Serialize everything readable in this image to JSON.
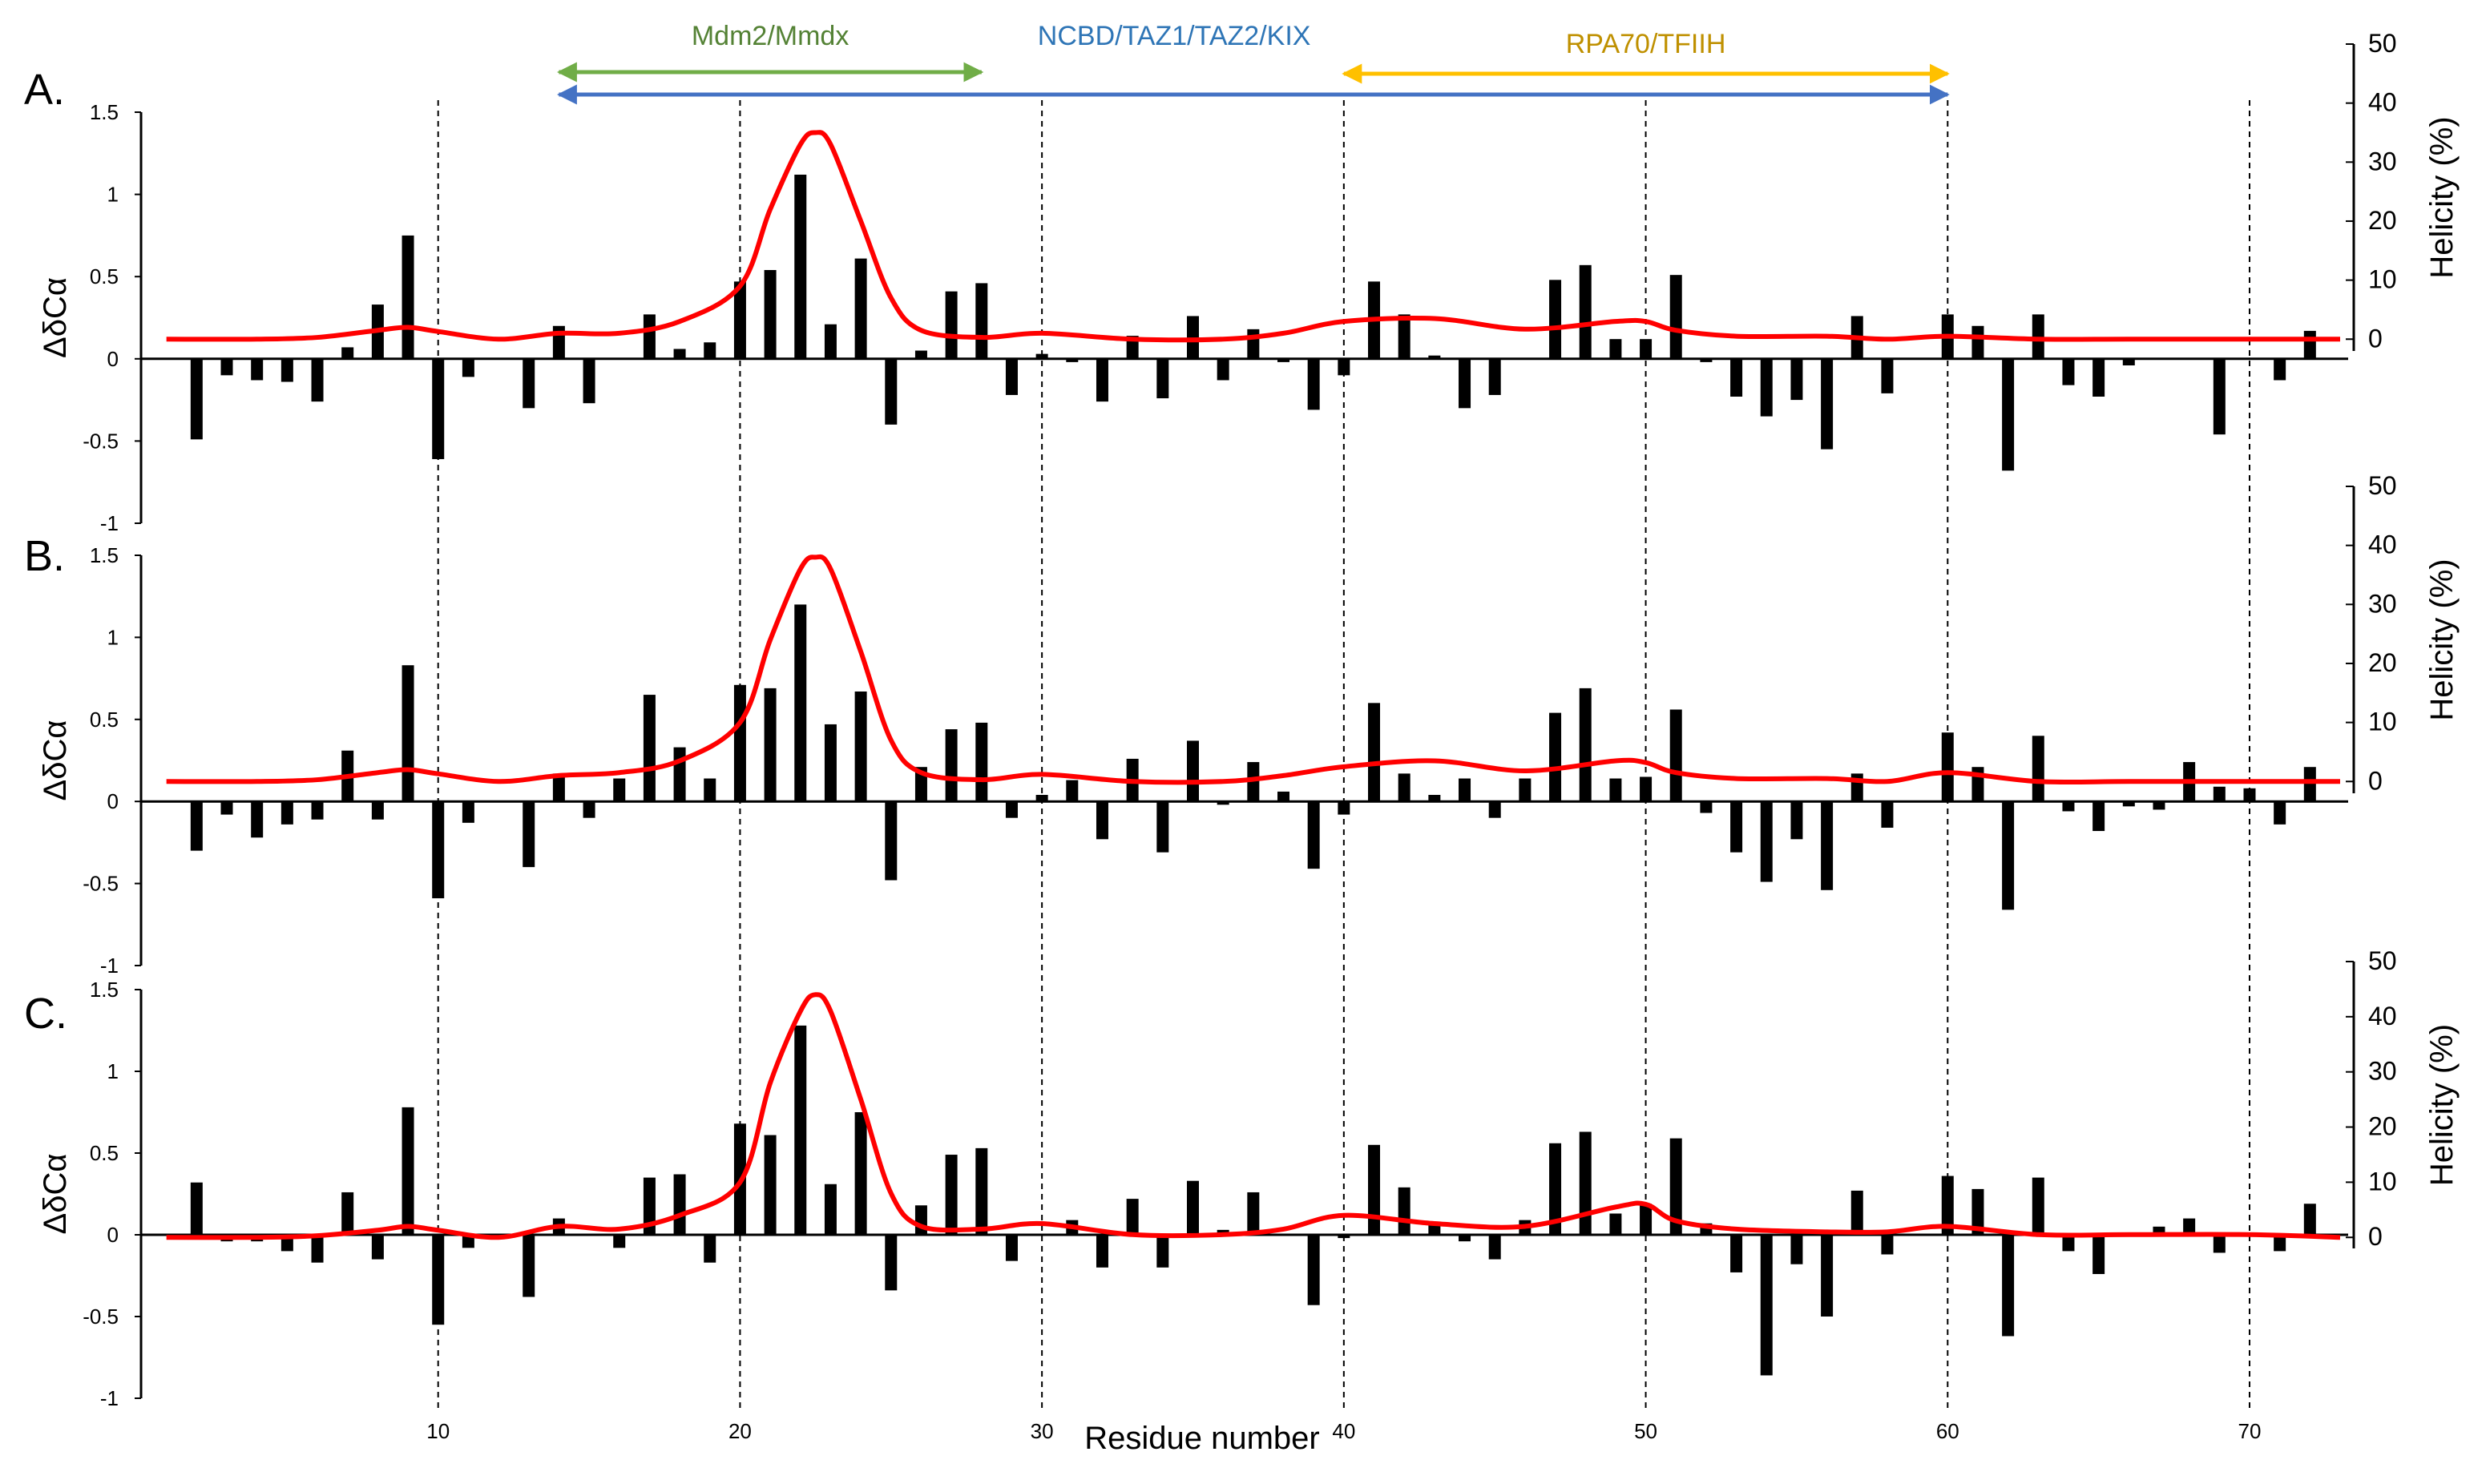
{
  "chart_data": {
    "type": "bar",
    "title": "",
    "xlabel": "Residue number",
    "xlim": [
      0,
      73
    ],
    "x_ticks": [
      10,
      20,
      30,
      40,
      50,
      60,
      70
    ],
    "x_tick_labels": [
      "10",
      "20",
      "30",
      "40",
      "50",
      "60",
      "70"
    ],
    "dashed_guides_at": [
      10,
      20,
      30,
      40,
      50,
      60,
      70
    ],
    "colors": {
      "bar": "#000000",
      "helicity": "#ff0000",
      "mdm2": "#70ad47",
      "ncbd": "#4472c4",
      "rpa": "#ffc000",
      "label_mdm2": "#548235",
      "label_ncbd": "#2e75b6",
      "label_rpa": "#bf9000",
      "guide": "#000000"
    },
    "binding_regions": [
      {
        "label": "Mdm2/Mmdx",
        "start": 14,
        "end": 28,
        "color_key": "mdm2",
        "label_color_key": "label_mdm2"
      },
      {
        "label": "NCBD/TAZ1/TAZ2/KIX",
        "start": 14,
        "end": 60,
        "color_key": "ncbd",
        "label_color_key": "label_ncbd"
      },
      {
        "label": "RPA70/TFIIH",
        "start": 40,
        "end": 60,
        "color_key": "rpa",
        "label_color_key": "label_rpa"
      }
    ],
    "panels": [
      {
        "label": "A.",
        "ylabel": "ΔδCα",
        "ylim": [
          -1,
          1.5
        ],
        "y_ticks": [
          -1,
          -0.5,
          0,
          0.5,
          1,
          1.5
        ],
        "y_tick_labels": [
          "-1",
          "-0.5",
          "0",
          "0.5",
          "1",
          "1.5"
        ],
        "y2label": "Helicity (%)",
        "y2lim": [
          -2,
          50
        ],
        "y2_ticks": [
          0,
          10,
          20,
          30,
          40,
          50
        ],
        "y2_tick_labels": [
          "0",
          "10",
          "20",
          "30",
          "40",
          "50"
        ],
        "residues": [
          2,
          3,
          4,
          5,
          6,
          7,
          8,
          9,
          10,
          11,
          13,
          14,
          15,
          17,
          18,
          19,
          20,
          21,
          22,
          23,
          24,
          25,
          26,
          27,
          28,
          29,
          30,
          31,
          32,
          33,
          34,
          35,
          36,
          37,
          38,
          39,
          40,
          41,
          42,
          43,
          44,
          45,
          47,
          48,
          49,
          50,
          51,
          52,
          53,
          54,
          55,
          56,
          57,
          58,
          60,
          61,
          62,
          63,
          64,
          65,
          66,
          69,
          71,
          72
        ],
        "delta_ca": [
          -0.49,
          -0.1,
          -0.13,
          -0.14,
          -0.26,
          0.07,
          0.33,
          0.75,
          -0.61,
          -0.11,
          -0.3,
          0.2,
          -0.27,
          0.27,
          0.06,
          0.1,
          0.47,
          0.54,
          1.12,
          0.21,
          0.61,
          -0.4,
          0.05,
          0.41,
          0.46,
          -0.22,
          0.03,
          -0.02,
          -0.26,
          0.14,
          -0.24,
          0.26,
          -0.13,
          0.18,
          -0.02,
          -0.31,
          -0.1,
          0.47,
          0.27,
          0.02,
          -0.3,
          -0.22,
          0.48,
          0.57,
          0.12,
          0.12,
          0.51,
          -0.02,
          -0.23,
          -0.35,
          -0.25,
          -0.55,
          0.26,
          -0.21,
          0.27,
          0.2,
          -0.68,
          0.27,
          -0.16,
          -0.23,
          -0.04,
          -0.46,
          -0.13,
          0.17
        ],
        "helicity_x": [
          1,
          4,
          6,
          8,
          9,
          10,
          12,
          14,
          16,
          18,
          20,
          21,
          22,
          22.5,
          23,
          24,
          25,
          26,
          28,
          30,
          33,
          36,
          38,
          40,
          43,
          46,
          49,
          50,
          51,
          53,
          56,
          58,
          60,
          63,
          66,
          70,
          73
        ],
        "helicity_y": [
          0,
          0,
          0.3,
          1.5,
          2,
          1.3,
          0,
          1,
          1,
          3,
          9,
          22,
          33,
          35,
          33,
          20,
          7,
          1.5,
          0.3,
          1,
          0,
          0,
          1,
          3,
          3.5,
          1.7,
          3,
          3,
          1.5,
          0.5,
          0.5,
          0,
          0.5,
          0,
          0,
          0,
          0
        ]
      },
      {
        "label": "B.",
        "ylabel": "ΔδCα",
        "ylim": [
          -1,
          1.5
        ],
        "y_ticks": [
          -1,
          -0.5,
          0,
          0.5,
          1,
          1.5
        ],
        "y_tick_labels": [
          "-1",
          "-0.5",
          "0",
          "0.5",
          "1",
          "1.5"
        ],
        "y2label": "Helicity (%)",
        "y2lim": [
          -2,
          50
        ],
        "y2_ticks": [
          0,
          10,
          20,
          30,
          40,
          50
        ],
        "y2_tick_labels": [
          "0",
          "10",
          "20",
          "30",
          "40",
          "50"
        ],
        "residues": [
          2,
          3,
          4,
          5,
          6,
          7,
          8,
          9,
          10,
          11,
          13,
          14,
          15,
          16,
          17,
          18,
          19,
          20,
          21,
          22,
          23,
          24,
          25,
          26,
          27,
          28,
          29,
          30,
          31,
          32,
          33,
          34,
          35,
          36,
          37,
          38,
          39,
          40,
          41,
          42,
          43,
          44,
          45,
          46,
          47,
          48,
          49,
          50,
          51,
          52,
          53,
          54,
          55,
          56,
          57,
          58,
          60,
          61,
          62,
          63,
          64,
          65,
          66,
          67,
          68,
          69,
          70,
          71,
          72
        ],
        "delta_ca": [
          -0.3,
          -0.08,
          -0.22,
          -0.14,
          -0.11,
          0.31,
          -0.11,
          0.83,
          -0.59,
          -0.13,
          -0.4,
          0.17,
          -0.1,
          0.14,
          0.65,
          0.33,
          0.14,
          0.71,
          0.69,
          1.2,
          0.47,
          0.67,
          -0.48,
          0.21,
          0.44,
          0.48,
          -0.1,
          0.04,
          0.13,
          -0.23,
          0.26,
          -0.31,
          0.37,
          -0.02,
          0.24,
          0.06,
          -0.41,
          -0.08,
          0.6,
          0.17,
          0.04,
          0.14,
          -0.1,
          0.14,
          0.54,
          0.69,
          0.14,
          0.15,
          0.56,
          -0.07,
          -0.31,
          -0.49,
          -0.23,
          -0.54,
          0.17,
          -0.16,
          0.42,
          0.21,
          -0.66,
          0.4,
          -0.06,
          -0.18,
          -0.03,
          -0.05,
          0.24,
          0.09,
          0.08,
          -0.14,
          0.21
        ],
        "helicity_x": [
          1,
          4,
          6,
          8,
          9,
          10,
          12,
          14,
          16,
          18,
          20,
          21,
          22,
          22.5,
          23,
          24,
          25,
          26,
          28,
          30,
          33,
          36,
          38,
          40,
          43,
          46,
          49,
          50,
          51,
          53,
          56,
          58,
          60,
          63,
          66,
          70,
          73
        ],
        "helicity_y": [
          0,
          0,
          0.3,
          1.5,
          2,
          1.3,
          0,
          1,
          1.5,
          3.5,
          10,
          24,
          36,
          38,
          36,
          22,
          7,
          1.5,
          0.3,
          1.2,
          0,
          0,
          1,
          2.5,
          3.5,
          1.8,
          3.5,
          3.2,
          1.5,
          0.5,
          0.5,
          0,
          1.5,
          0,
          0,
          0,
          0
        ]
      },
      {
        "label": "C.",
        "ylabel": "ΔδCα",
        "ylim": [
          -1,
          1.5
        ],
        "y_ticks": [
          -1,
          -0.5,
          0,
          0.5,
          1,
          1.5
        ],
        "y_tick_labels": [
          "-1",
          "-0.5",
          "0",
          "0.5",
          "1",
          "1.5"
        ],
        "y2label": "Helicity (%)",
        "y2lim": [
          -2,
          50
        ],
        "y2_ticks": [
          0,
          10,
          20,
          30,
          40,
          50
        ],
        "y2_tick_labels": [
          "0",
          "10",
          "20",
          "30",
          "40",
          "50"
        ],
        "residues": [
          2,
          3,
          4,
          5,
          6,
          7,
          8,
          9,
          10,
          11,
          13,
          14,
          16,
          17,
          18,
          19,
          20,
          21,
          22,
          23,
          24,
          25,
          26,
          27,
          28,
          29,
          31,
          32,
          33,
          34,
          35,
          36,
          37,
          39,
          40,
          41,
          42,
          43,
          44,
          45,
          46,
          47,
          48,
          49,
          50,
          51,
          52,
          53,
          54,
          55,
          56,
          57,
          58,
          60,
          61,
          62,
          63,
          64,
          65,
          67,
          68,
          69,
          71,
          72
        ],
        "delta_ca": [
          0.32,
          -0.04,
          -0.04,
          -0.1,
          -0.17,
          0.26,
          -0.15,
          0.78,
          -0.55,
          -0.08,
          -0.38,
          0.1,
          -0.08,
          0.35,
          0.37,
          -0.17,
          0.68,
          0.61,
          1.28,
          0.31,
          0.75,
          -0.34,
          0.18,
          0.49,
          0.53,
          -0.16,
          0.09,
          -0.2,
          0.22,
          -0.2,
          0.33,
          0.03,
          0.26,
          -0.43,
          -0.02,
          0.55,
          0.29,
          0.06,
          -0.04,
          -0.15,
          0.09,
          0.56,
          0.63,
          0.13,
          0.19,
          0.59,
          0.07,
          -0.23,
          -0.86,
          -0.18,
          -0.5,
          0.27,
          -0.12,
          0.36,
          0.28,
          -0.62,
          0.35,
          -0.1,
          -0.24,
          0.05,
          0.1,
          -0.11,
          -0.1,
          0.19
        ],
        "helicity_x": [
          1,
          4,
          6,
          8,
          9,
          10,
          12,
          14,
          16,
          18,
          20,
          21,
          22,
          22.5,
          23,
          24,
          25,
          26,
          28,
          30,
          33,
          36,
          38,
          40,
          43,
          46,
          49,
          50,
          51,
          53,
          56,
          58,
          60,
          63,
          66,
          70,
          73
        ],
        "helicity_y": [
          0,
          0,
          0.3,
          1.3,
          2,
          1.3,
          0,
          2,
          1.5,
          4,
          10,
          28,
          41,
          44,
          41,
          25,
          8,
          2,
          1.5,
          2.5,
          0.5,
          0.5,
          1.5,
          4,
          2.5,
          2,
          5.5,
          6,
          3,
          1.5,
          1,
          1,
          2,
          0.5,
          0.5,
          0.5,
          0
        ]
      }
    ]
  }
}
